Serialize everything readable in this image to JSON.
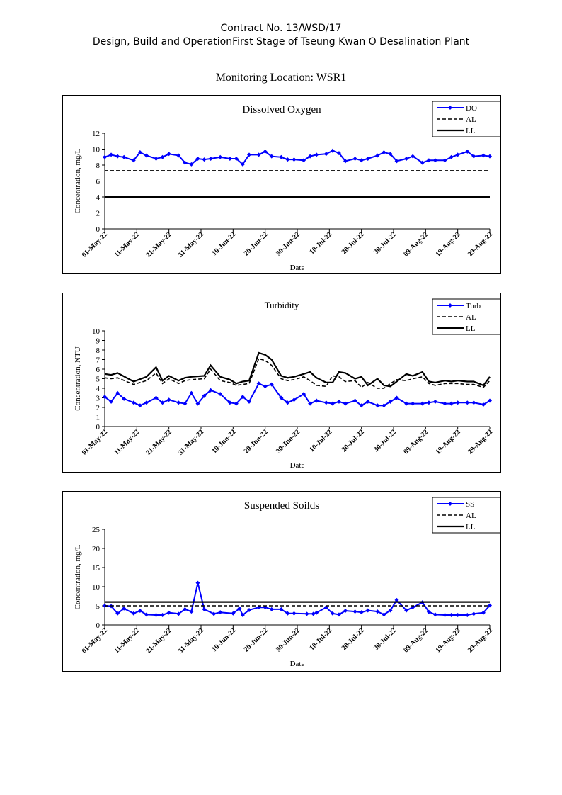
{
  "header": {
    "contract": "Contract No. 13/WSD/17",
    "project": "Design, Build and OperationFirst Stage  of Tseung Kwan O Desalination Plant",
    "location": "Monitoring Location: WSR1"
  },
  "colors": {
    "series": "#0000ff",
    "limits": "#000000"
  },
  "date_ticks": [
    "01-May-22",
    "11-May-22",
    "21-May-22",
    "31-May-22",
    "10-Jun-22",
    "20-Jun-22",
    "30-Jun-22",
    "10-Jul-22",
    "20-Jul-22",
    "30-Jul-22",
    "09-Aug-22",
    "19-Aug-22",
    "29-Aug-22"
  ],
  "chart_data": [
    {
      "type": "line",
      "title": "Dissolved Oxygen",
      "xlabel": "Date",
      "ylabel": "Concentration, mg/L",
      "ylim": [
        0,
        12
      ],
      "yticks": [
        0,
        2,
        4,
        6,
        8,
        10,
        12
      ],
      "xlim_days": [
        0,
        120
      ],
      "legend_position": "top-right",
      "series": [
        {
          "name": "DO",
          "style": "marker-line",
          "x": [
            0,
            2,
            4,
            6,
            9,
            11,
            13,
            16,
            18,
            20,
            23,
            25,
            27,
            29,
            31,
            33,
            36,
            39,
            41,
            43,
            45,
            48,
            50,
            52,
            55,
            57,
            59,
            62,
            64,
            66,
            69,
            71,
            73,
            75,
            78,
            80,
            82,
            85,
            87,
            89,
            91,
            94,
            96,
            99,
            101,
            103,
            106,
            108,
            110,
            113,
            115,
            118,
            120
          ],
          "y": [
            9.0,
            9.3,
            9.1,
            9.0,
            8.6,
            9.6,
            9.2,
            8.8,
            9.0,
            9.4,
            9.2,
            8.3,
            8.1,
            8.8,
            8.7,
            8.8,
            9.0,
            8.8,
            8.8,
            8.1,
            9.3,
            9.3,
            9.7,
            9.1,
            9.0,
            8.7,
            8.7,
            8.6,
            9.1,
            9.3,
            9.4,
            9.8,
            9.5,
            8.5,
            8.8,
            8.6,
            8.8,
            9.2,
            9.6,
            9.4,
            8.5,
            8.8,
            9.1,
            8.3,
            8.6,
            8.6,
            8.6,
            9.0,
            9.3,
            9.7,
            9.1,
            9.2,
            9.1
          ]
        },
        {
          "name": "AL",
          "style": "dashed",
          "x": [
            0,
            120
          ],
          "y": [
            7.3,
            7.3
          ]
        },
        {
          "name": "LL",
          "style": "solid",
          "x": [
            0,
            120
          ],
          "y": [
            4.0,
            4.0
          ]
        }
      ]
    },
    {
      "type": "line",
      "title": "Turbidity",
      "xlabel": "Date",
      "ylabel": "Concentration, NTU",
      "ylim": [
        0,
        10
      ],
      "yticks": [
        0,
        1,
        2,
        3,
        4,
        5,
        6,
        7,
        8,
        9,
        10
      ],
      "xlim_days": [
        0,
        120
      ],
      "legend_position": "top-right",
      "series": [
        {
          "name": "Turb",
          "style": "marker-line",
          "x": [
            0,
            2,
            4,
            6,
            9,
            11,
            13,
            16,
            18,
            20,
            23,
            25,
            27,
            29,
            31,
            33,
            36,
            39,
            41,
            43,
            45,
            48,
            50,
            52,
            55,
            57,
            59,
            62,
            64,
            66,
            69,
            71,
            73,
            75,
            78,
            80,
            82,
            85,
            87,
            89,
            91,
            94,
            96,
            99,
            101,
            103,
            106,
            108,
            110,
            113,
            115,
            118,
            120
          ],
          "y": [
            3.1,
            2.6,
            3.5,
            2.9,
            2.5,
            2.2,
            2.5,
            3.0,
            2.5,
            2.8,
            2.5,
            2.4,
            3.5,
            2.4,
            3.2,
            3.8,
            3.4,
            2.5,
            2.4,
            3.1,
            2.6,
            4.5,
            4.2,
            4.4,
            3.0,
            2.5,
            2.8,
            3.4,
            2.4,
            2.7,
            2.5,
            2.4,
            2.6,
            2.4,
            2.7,
            2.2,
            2.6,
            2.2,
            2.2,
            2.6,
            3.0,
            2.4,
            2.4,
            2.4,
            2.5,
            2.6,
            2.4,
            2.4,
            2.5,
            2.5,
            2.5,
            2.3,
            2.7
          ]
        },
        {
          "name": "AL",
          "style": "dashed",
          "x": [
            0,
            2,
            4,
            9,
            13,
            16,
            18,
            20,
            23,
            25,
            27,
            31,
            33,
            36,
            39,
            41,
            43,
            45,
            48,
            50,
            52,
            55,
            57,
            59,
            62,
            64,
            66,
            69,
            71,
            73,
            75,
            78,
            80,
            82,
            85,
            87,
            89,
            91,
            94,
            96,
            99,
            101,
            103,
            106,
            108,
            110,
            113,
            115,
            118,
            120
          ],
          "y": [
            5.1,
            5.0,
            5.1,
            4.4,
            4.8,
            5.6,
            4.5,
            5.0,
            4.5,
            4.8,
            4.9,
            5.0,
            6.0,
            4.8,
            4.6,
            4.3,
            4.4,
            4.5,
            7.1,
            6.9,
            6.4,
            5.0,
            4.8,
            4.9,
            5.2,
            4.8,
            4.3,
            4.2,
            5.3,
            5.2,
            4.7,
            4.8,
            4.1,
            4.6,
            4.0,
            4.0,
            4.5,
            4.9,
            4.8,
            5.0,
            5.2,
            4.5,
            4.3,
            4.5,
            4.5,
            4.5,
            4.4,
            4.4,
            4.1,
            4.8
          ]
        },
        {
          "name": "LL",
          "style": "solid",
          "x": [
            0,
            2,
            4,
            9,
            13,
            16,
            18,
            20,
            23,
            25,
            27,
            31,
            33,
            36,
            39,
            41,
            43,
            45,
            48,
            50,
            52,
            55,
            57,
            59,
            62,
            64,
            66,
            69,
            71,
            73,
            75,
            78,
            80,
            82,
            85,
            87,
            89,
            91,
            94,
            96,
            99,
            101,
            103,
            106,
            108,
            110,
            113,
            115,
            118,
            120
          ],
          "y": [
            5.5,
            5.4,
            5.6,
            4.7,
            5.2,
            6.2,
            4.8,
            5.3,
            4.8,
            5.1,
            5.2,
            5.3,
            6.4,
            5.2,
            4.9,
            4.5,
            4.7,
            4.8,
            7.7,
            7.5,
            7.0,
            5.3,
            5.1,
            5.2,
            5.5,
            5.7,
            5.1,
            4.6,
            4.6,
            5.7,
            5.6,
            5.0,
            5.2,
            4.3,
            5.0,
            4.3,
            4.2,
            4.7,
            5.5,
            5.3,
            5.7,
            4.7,
            4.6,
            4.8,
            4.7,
            4.8,
            4.7,
            4.7,
            4.3,
            5.2
          ]
        }
      ]
    },
    {
      "type": "line",
      "title": "Suspended Soilds",
      "xlabel": "Date",
      "ylabel": "Concentration, mg/L",
      "ylim": [
        0,
        25
      ],
      "yticks": [
        0,
        5,
        10,
        15,
        20,
        25
      ],
      "xlim_days": [
        0,
        120
      ],
      "legend_position": "top-right",
      "series": [
        {
          "name": "SS",
          "style": "marker-line",
          "x": [
            0,
            2,
            4,
            6,
            9,
            11,
            13,
            16,
            18,
            20,
            23,
            25,
            27,
            29,
            31,
            34,
            36,
            40,
            42,
            43,
            45,
            48,
            50,
            52,
            55,
            57,
            59,
            63,
            65,
            66,
            69,
            71,
            73,
            75,
            78,
            80,
            82,
            85,
            87,
            89,
            91,
            94,
            96,
            99,
            101,
            103,
            106,
            108,
            110,
            113,
            115,
            118,
            120
          ],
          "y": [
            5.0,
            4.9,
            3.0,
            4.3,
            3.0,
            3.7,
            2.7,
            2.6,
            2.6,
            3.2,
            2.9,
            4.1,
            3.5,
            11.0,
            4.1,
            2.9,
            3.3,
            3.0,
            4.3,
            2.6,
            3.9,
            4.6,
            4.6,
            4.1,
            4.1,
            3.0,
            3.0,
            2.9,
            2.9,
            3.2,
            4.6,
            3.0,
            2.7,
            3.7,
            3.5,
            3.3,
            3.8,
            3.5,
            2.7,
            3.8,
            6.5,
            3.8,
            4.6,
            5.9,
            3.4,
            2.7,
            2.6,
            2.6,
            2.6,
            2.6,
            2.9,
            3.2,
            5.1
          ]
        },
        {
          "name": "AL",
          "style": "dashed",
          "x": [
            0,
            120
          ],
          "y": [
            5.0,
            5.0
          ]
        },
        {
          "name": "LL",
          "style": "solid",
          "x": [
            0,
            120
          ],
          "y": [
            6.0,
            6.0
          ]
        }
      ]
    }
  ]
}
